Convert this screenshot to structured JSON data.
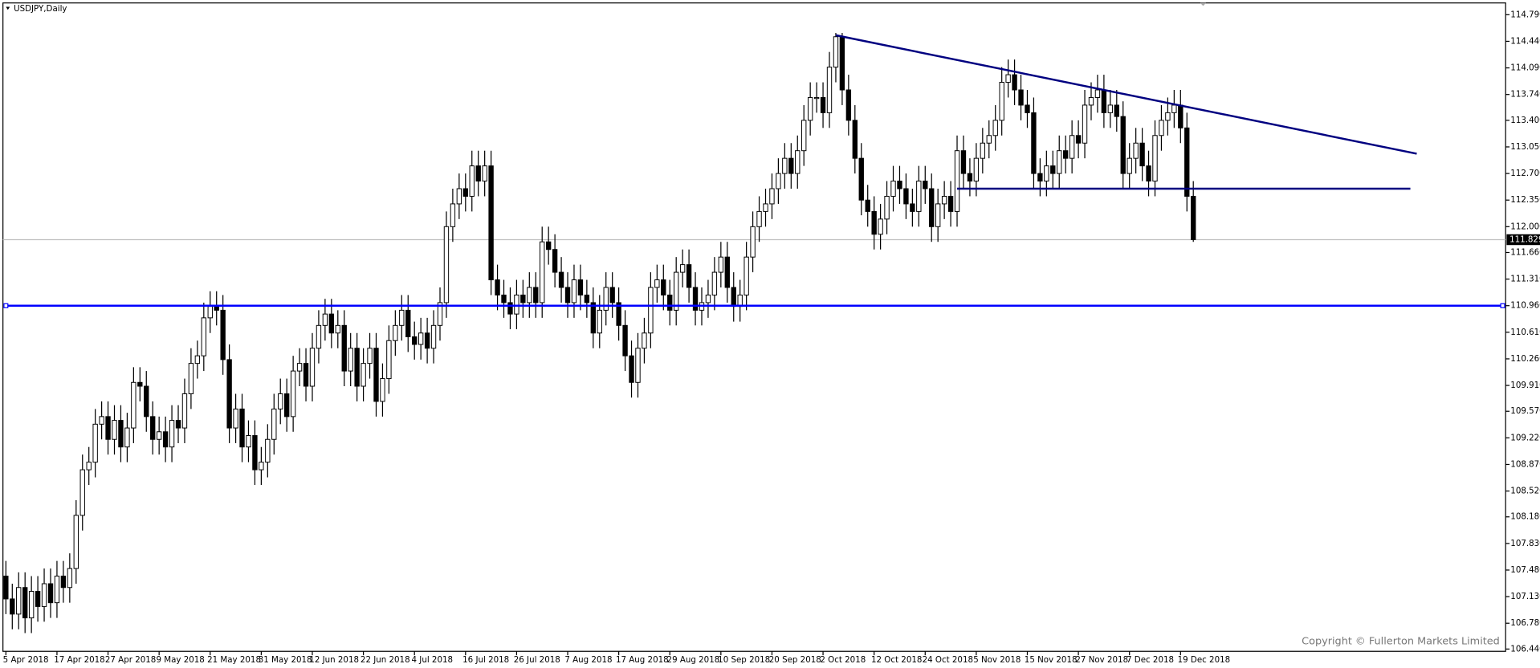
{
  "chart_data": {
    "type": "candlestick",
    "title": "USDJPY,Daily",
    "watermark": "Copyright © Fullerton Markets Limited",
    "ylim": [
      106.41,
      114.945
    ],
    "yticks": [
      {
        "value": 114.79,
        "label": "114.790"
      },
      {
        "value": 114.44,
        "label": "114.440"
      },
      {
        "value": 114.09,
        "label": "114.090"
      },
      {
        "value": 113.74,
        "label": "113.740"
      },
      {
        "value": 113.4,
        "label": "113.400"
      },
      {
        "value": 113.05,
        "label": "113.050"
      },
      {
        "value": 112.7,
        "label": "112.700"
      },
      {
        "value": 112.35,
        "label": "112.350"
      },
      {
        "value": 112.0,
        "label": "112.000"
      },
      {
        "value": 111.66,
        "label": "111.660"
      },
      {
        "value": 111.31,
        "label": "111.310"
      },
      {
        "value": 110.96,
        "label": "110.960"
      },
      {
        "value": 110.61,
        "label": "110.610"
      },
      {
        "value": 110.26,
        "label": "110.260"
      },
      {
        "value": 109.91,
        "label": "109.910"
      },
      {
        "value": 109.57,
        "label": "109.570"
      },
      {
        "value": 109.22,
        "label": "109.220"
      },
      {
        "value": 108.87,
        "label": "108.870"
      },
      {
        "value": 108.52,
        "label": "108.520"
      },
      {
        "value": 108.18,
        "label": "108.180"
      },
      {
        "value": 107.83,
        "label": "107.830"
      },
      {
        "value": 107.48,
        "label": "107.480"
      },
      {
        "value": 107.13,
        "label": "107.130"
      },
      {
        "value": 106.78,
        "label": "106.780"
      },
      {
        "value": 106.44,
        "label": "106.440"
      }
    ],
    "last_price": {
      "value": 111.829,
      "label": "111.829"
    },
    "bull_color": "#ffffff",
    "bear_color": "#000000",
    "categories": [
      "5 Apr 2018",
      null,
      null,
      null,
      null,
      null,
      null,
      null,
      "17 Apr 2018",
      null,
      null,
      null,
      null,
      null,
      null,
      null,
      "27 Apr 2018",
      null,
      null,
      null,
      null,
      null,
      null,
      null,
      "9 May 2018",
      null,
      null,
      null,
      null,
      null,
      null,
      null,
      "21 May 2018",
      null,
      null,
      null,
      null,
      null,
      null,
      null,
      "31 May 2018",
      null,
      null,
      null,
      null,
      null,
      null,
      null,
      "12 Jun 2018",
      null,
      null,
      null,
      null,
      null,
      null,
      null,
      "22 Jun 2018",
      null,
      null,
      null,
      null,
      null,
      null,
      null,
      "4 Jul 2018",
      null,
      null,
      null,
      null,
      null,
      null,
      null,
      "16 Jul 2018",
      null,
      null,
      null,
      null,
      null,
      null,
      null,
      "26 Jul 2018",
      null,
      null,
      null,
      null,
      null,
      null,
      null,
      "7 Aug 2018",
      null,
      null,
      null,
      null,
      null,
      null,
      null,
      "17 Aug 2018",
      null,
      null,
      null,
      null,
      null,
      null,
      null,
      "29 Aug 2018",
      null,
      null,
      null,
      null,
      null,
      null,
      null,
      "10 Sep 2018",
      null,
      null,
      null,
      null,
      null,
      null,
      null,
      "20 Sep 2018",
      null,
      null,
      null,
      null,
      null,
      null,
      null,
      "2 Oct 2018",
      null,
      null,
      null,
      null,
      null,
      null,
      null,
      "12 Oct 2018",
      null,
      null,
      null,
      null,
      null,
      null,
      null,
      "24 Oct 2018",
      null,
      null,
      null,
      null,
      null,
      null,
      null,
      "5 Nov 2018",
      null,
      null,
      null,
      null,
      null,
      null,
      null,
      "15 Nov 2018",
      null,
      null,
      null,
      null,
      null,
      null,
      null,
      "27 Nov 2018",
      null,
      null,
      null,
      null,
      null,
      null,
      null,
      "7 Dec 2018",
      null,
      null,
      null,
      null,
      null,
      null,
      null,
      "19 Dec 2018",
      null,
      null
    ],
    "ohlc": [
      [
        107.4,
        107.6,
        106.9,
        107.1
      ],
      [
        107.1,
        107.3,
        106.7,
        106.9
      ],
      [
        106.9,
        107.45,
        106.7,
        107.25
      ],
      [
        107.25,
        107.45,
        106.65,
        106.85
      ],
      [
        106.85,
        107.4,
        106.65,
        107.2
      ],
      [
        107.2,
        107.4,
        106.8,
        107.0
      ],
      [
        107.0,
        107.5,
        106.8,
        107.3
      ],
      [
        107.3,
        107.5,
        106.85,
        107.05
      ],
      [
        107.05,
        107.6,
        106.85,
        107.4
      ],
      [
        107.4,
        107.6,
        107.05,
        107.25
      ],
      [
        107.25,
        107.7,
        107.05,
        107.5
      ],
      [
        107.5,
        108.4,
        107.3,
        108.2
      ],
      [
        108.2,
        109.0,
        108.0,
        108.8
      ],
      [
        108.8,
        109.1,
        108.6,
        108.9
      ],
      [
        108.9,
        109.6,
        108.7,
        109.4
      ],
      [
        109.4,
        109.7,
        109.2,
        109.5
      ],
      [
        109.5,
        109.7,
        109.0,
        109.2
      ],
      [
        109.2,
        109.65,
        109.0,
        109.45
      ],
      [
        109.45,
        109.65,
        108.9,
        109.1
      ],
      [
        109.1,
        109.55,
        108.9,
        109.35
      ],
      [
        109.35,
        110.15,
        109.15,
        109.95
      ],
      [
        109.95,
        110.15,
        109.7,
        109.9
      ],
      [
        109.9,
        110.1,
        109.3,
        109.5
      ],
      [
        109.5,
        109.7,
        109.0,
        109.2
      ],
      [
        109.2,
        109.5,
        109.0,
        109.3
      ],
      [
        109.3,
        109.5,
        108.9,
        109.1
      ],
      [
        109.1,
        109.65,
        108.9,
        109.45
      ],
      [
        109.45,
        109.65,
        109.15,
        109.35
      ],
      [
        109.35,
        110.0,
        109.15,
        109.8
      ],
      [
        109.8,
        110.4,
        109.6,
        110.2
      ],
      [
        110.2,
        110.5,
        110.0,
        110.3
      ],
      [
        110.3,
        111.0,
        110.1,
        110.8
      ],
      [
        110.8,
        111.15,
        110.6,
        110.95
      ],
      [
        110.95,
        111.15,
        110.7,
        110.9
      ],
      [
        110.9,
        111.1,
        110.05,
        110.25
      ],
      [
        110.25,
        110.45,
        109.15,
        109.35
      ],
      [
        109.35,
        109.8,
        109.15,
        109.6
      ],
      [
        109.6,
        109.8,
        108.9,
        109.1
      ],
      [
        109.1,
        109.45,
        108.9,
        109.25
      ],
      [
        109.25,
        109.45,
        108.6,
        108.8
      ],
      [
        108.8,
        109.1,
        108.6,
        108.9
      ],
      [
        108.9,
        109.4,
        108.7,
        109.2
      ],
      [
        109.2,
        109.8,
        109.0,
        109.6
      ],
      [
        109.6,
        110.0,
        109.4,
        109.8
      ],
      [
        109.8,
        110.0,
        109.3,
        109.5
      ],
      [
        109.5,
        110.3,
        109.3,
        110.1
      ],
      [
        110.1,
        110.4,
        109.9,
        110.2
      ],
      [
        110.2,
        110.4,
        109.7,
        109.9
      ],
      [
        109.9,
        110.6,
        109.7,
        110.4
      ],
      [
        110.4,
        110.9,
        110.2,
        110.7
      ],
      [
        110.7,
        111.05,
        110.5,
        110.85
      ],
      [
        110.85,
        111.05,
        110.4,
        110.6
      ],
      [
        110.6,
        110.9,
        110.4,
        110.7
      ],
      [
        110.7,
        110.9,
        109.9,
        110.1
      ],
      [
        110.1,
        110.6,
        109.9,
        110.4
      ],
      [
        110.4,
        110.6,
        109.7,
        109.9
      ],
      [
        109.9,
        110.4,
        109.7,
        110.2
      ],
      [
        110.2,
        110.6,
        110.0,
        110.4
      ],
      [
        110.4,
        110.6,
        109.5,
        109.7
      ],
      [
        109.7,
        110.2,
        109.5,
        110.0
      ],
      [
        110.0,
        110.7,
        109.8,
        110.5
      ],
      [
        110.5,
        110.9,
        110.3,
        110.7
      ],
      [
        110.7,
        111.1,
        110.5,
        110.9
      ],
      [
        110.9,
        111.1,
        110.35,
        110.55
      ],
      [
        110.55,
        110.75,
        110.25,
        110.45
      ],
      [
        110.45,
        110.8,
        110.25,
        110.6
      ],
      [
        110.6,
        110.8,
        110.2,
        110.4
      ],
      [
        110.4,
        110.9,
        110.2,
        110.7
      ],
      [
        110.7,
        111.2,
        110.5,
        111.0
      ],
      [
        111.0,
        112.2,
        110.8,
        112.0
      ],
      [
        112.0,
        112.5,
        111.8,
        112.3
      ],
      [
        112.3,
        112.7,
        112.1,
        112.5
      ],
      [
        112.5,
        112.7,
        112.2,
        112.4
      ],
      [
        112.4,
        113.0,
        112.2,
        112.8
      ],
      [
        112.8,
        113.0,
        112.4,
        112.6
      ],
      [
        112.6,
        113.0,
        112.4,
        112.8
      ],
      [
        112.8,
        113.0,
        111.1,
        111.3
      ],
      [
        111.3,
        111.5,
        110.9,
        111.1
      ],
      [
        111.1,
        111.3,
        110.8,
        111.0
      ],
      [
        111.0,
        111.2,
        110.65,
        110.85
      ],
      [
        110.85,
        111.3,
        110.65,
        111.1
      ],
      [
        111.1,
        111.3,
        110.8,
        111.0
      ],
      [
        111.0,
        111.4,
        110.8,
        111.2
      ],
      [
        111.2,
        111.4,
        110.8,
        111.0
      ],
      [
        111.0,
        112.0,
        110.8,
        111.8
      ],
      [
        111.8,
        112.0,
        111.5,
        111.7
      ],
      [
        111.7,
        111.9,
        111.2,
        111.4
      ],
      [
        111.4,
        111.6,
        111.0,
        111.2
      ],
      [
        111.2,
        111.4,
        110.8,
        111.0
      ],
      [
        111.0,
        111.5,
        110.8,
        111.3
      ],
      [
        111.3,
        111.5,
        110.9,
        111.1
      ],
      [
        111.1,
        111.3,
        110.8,
        111.0
      ],
      [
        111.0,
        111.2,
        110.4,
        110.6
      ],
      [
        110.6,
        111.1,
        110.4,
        110.9
      ],
      [
        110.9,
        111.4,
        110.7,
        111.2
      ],
      [
        111.2,
        111.4,
        110.8,
        111.0
      ],
      [
        111.0,
        111.2,
        110.5,
        110.7
      ],
      [
        110.7,
        110.9,
        110.1,
        110.3
      ],
      [
        110.3,
        110.5,
        109.75,
        109.95
      ],
      [
        109.95,
        110.6,
        109.75,
        110.4
      ],
      [
        110.4,
        110.8,
        110.2,
        110.6
      ],
      [
        110.6,
        111.4,
        110.4,
        111.2
      ],
      [
        111.2,
        111.5,
        111.0,
        111.3
      ],
      [
        111.3,
        111.5,
        110.9,
        111.1
      ],
      [
        111.1,
        111.3,
        110.7,
        110.9
      ],
      [
        110.9,
        111.6,
        110.7,
        111.4
      ],
      [
        111.4,
        111.7,
        111.2,
        111.5
      ],
      [
        111.5,
        111.7,
        111.0,
        111.2
      ],
      [
        111.2,
        111.4,
        110.7,
        110.9
      ],
      [
        110.9,
        111.2,
        110.7,
        111.0
      ],
      [
        111.0,
        111.3,
        110.8,
        111.1
      ],
      [
        111.1,
        111.6,
        110.9,
        111.4
      ],
      [
        111.4,
        111.8,
        111.2,
        111.6
      ],
      [
        111.6,
        111.8,
        111.0,
        111.2
      ],
      [
        111.2,
        111.4,
        110.75,
        110.95
      ],
      [
        110.95,
        111.3,
        110.75,
        111.1
      ],
      [
        111.1,
        111.8,
        110.9,
        111.6
      ],
      [
        111.6,
        112.2,
        111.4,
        112.0
      ],
      [
        112.0,
        112.4,
        111.8,
        112.2
      ],
      [
        112.2,
        112.5,
        112.0,
        112.3
      ],
      [
        112.3,
        112.7,
        112.1,
        112.5
      ],
      [
        112.5,
        112.9,
        112.3,
        112.7
      ],
      [
        112.7,
        113.1,
        112.5,
        112.9
      ],
      [
        112.9,
        113.1,
        112.5,
        112.7
      ],
      [
        112.7,
        113.2,
        112.5,
        113.0
      ],
      [
        113.0,
        113.6,
        112.8,
        113.4
      ],
      [
        113.4,
        113.9,
        113.2,
        113.7
      ],
      [
        113.7,
        113.9,
        113.5,
        113.7
      ],
      [
        113.7,
        113.9,
        113.3,
        113.5
      ],
      [
        113.5,
        114.3,
        113.3,
        114.1
      ],
      [
        114.1,
        114.55,
        113.9,
        114.5
      ],
      [
        114.5,
        114.55,
        113.6,
        113.8
      ],
      [
        113.8,
        114.0,
        113.2,
        113.4
      ],
      [
        113.4,
        113.6,
        112.7,
        112.9
      ],
      [
        112.9,
        113.1,
        112.15,
        112.35
      ],
      [
        112.35,
        112.55,
        112.0,
        112.2
      ],
      [
        112.2,
        112.4,
        111.7,
        111.9
      ],
      [
        111.9,
        112.3,
        111.7,
        112.1
      ],
      [
        112.1,
        112.6,
        111.9,
        112.4
      ],
      [
        112.4,
        112.8,
        112.2,
        112.6
      ],
      [
        112.6,
        112.8,
        112.3,
        112.5
      ],
      [
        112.5,
        112.7,
        112.1,
        112.3
      ],
      [
        112.3,
        112.5,
        112.0,
        112.2
      ],
      [
        112.2,
        112.8,
        112.0,
        112.6
      ],
      [
        112.6,
        112.8,
        112.3,
        112.5
      ],
      [
        112.5,
        112.7,
        111.8,
        112.0
      ],
      [
        112.0,
        112.5,
        111.8,
        112.3
      ],
      [
        112.3,
        112.6,
        112.1,
        112.4
      ],
      [
        112.4,
        112.6,
        112.0,
        112.2
      ],
      [
        112.2,
        113.2,
        112.0,
        113.0
      ],
      [
        113.0,
        113.2,
        112.5,
        112.7
      ],
      [
        112.7,
        112.9,
        112.4,
        112.6
      ],
      [
        112.6,
        113.1,
        112.4,
        112.9
      ],
      [
        112.9,
        113.3,
        112.7,
        113.1
      ],
      [
        113.1,
        113.4,
        112.9,
        113.2
      ],
      [
        113.2,
        113.6,
        113.0,
        113.4
      ],
      [
        113.4,
        114.1,
        113.2,
        113.9
      ],
      [
        113.9,
        114.2,
        113.7,
        114.0
      ],
      [
        114.0,
        114.2,
        113.6,
        113.8
      ],
      [
        113.8,
        114.0,
        113.4,
        113.6
      ],
      [
        113.6,
        113.8,
        113.3,
        113.5
      ],
      [
        113.5,
        113.7,
        112.5,
        112.7
      ],
      [
        112.7,
        112.9,
        112.4,
        112.6
      ],
      [
        112.6,
        113.0,
        112.4,
        112.8
      ],
      [
        112.8,
        113.0,
        112.5,
        112.7
      ],
      [
        112.7,
        113.2,
        112.5,
        113.0
      ],
      [
        113.0,
        113.2,
        112.7,
        112.9
      ],
      [
        112.9,
        113.4,
        112.7,
        113.2
      ],
      [
        113.2,
        113.4,
        112.9,
        113.1
      ],
      [
        113.1,
        113.8,
        112.9,
        113.6
      ],
      [
        113.6,
        113.9,
        113.4,
        113.7
      ],
      [
        113.7,
        114.0,
        113.5,
        113.8
      ],
      [
        113.8,
        114.0,
        113.3,
        113.5
      ],
      [
        113.5,
        113.8,
        113.3,
        113.6
      ],
      [
        113.6,
        113.8,
        113.25,
        113.45
      ],
      [
        113.45,
        113.65,
        112.5,
        112.7
      ],
      [
        112.7,
        113.1,
        112.5,
        112.9
      ],
      [
        112.9,
        113.3,
        112.7,
        113.1
      ],
      [
        113.1,
        113.3,
        112.6,
        112.8
      ],
      [
        112.8,
        113.0,
        112.4,
        112.6
      ],
      [
        112.6,
        113.4,
        112.4,
        113.2
      ],
      [
        113.2,
        113.6,
        113.0,
        113.4
      ],
      [
        113.4,
        113.7,
        113.2,
        113.5
      ],
      [
        113.5,
        113.8,
        113.3,
        113.6
      ],
      [
        113.6,
        113.8,
        113.1,
        113.3
      ],
      [
        113.3,
        113.5,
        112.2,
        112.4
      ],
      [
        112.4,
        112.6,
        111.8,
        111.83
      ]
    ],
    "hlines": [
      {
        "value": 110.96,
        "color": "#0000ff"
      }
    ],
    "segments": [
      {
        "x": [
          149,
          220
        ],
        "y": [
          112.5,
          112.5
        ],
        "color": "#000080"
      },
      {
        "x": [
          130,
          221
        ],
        "y": [
          114.52,
          112.96
        ],
        "color": "#000080"
      }
    ]
  }
}
